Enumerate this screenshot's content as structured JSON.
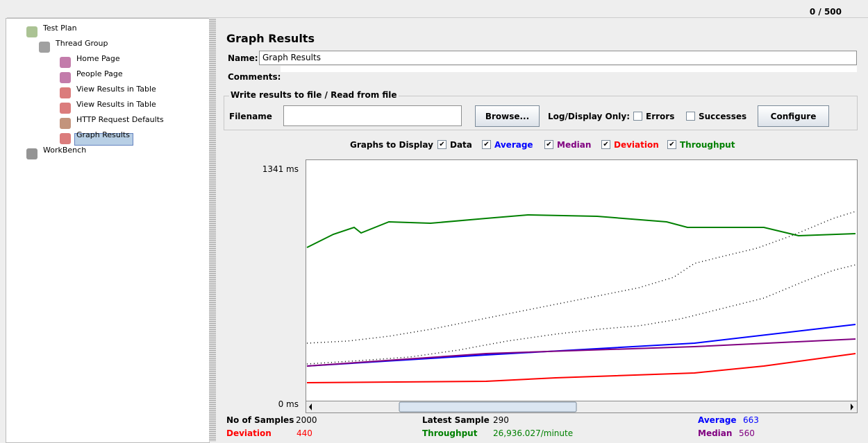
{
  "toolbar": {
    "counter": "0 / 500"
  },
  "tree": {
    "items": [
      "Test Plan",
      "Thread Group",
      "Home Page",
      "People Page",
      "View Results in Table",
      "View Results in Table",
      "HTTP Request Defaults",
      "Graph Results",
      "WorkBench"
    ]
  },
  "panel": {
    "title": "Graph Results",
    "name_label": "Name:",
    "name_value": "Graph Results",
    "comments_label": "Comments:",
    "file_group": {
      "legend": "Write results to file / Read from file",
      "filename_label": "Filename",
      "browse": "Browse...",
      "log_label": "Log/Display Only:",
      "errors": "Errors",
      "successes": "Successes",
      "configure": "Configure"
    },
    "graphs": {
      "label": "Graphs to Display",
      "options": [
        "Data",
        "Average",
        "Median",
        "Deviation",
        "Throughput"
      ]
    },
    "axis": {
      "top": "1341 ms",
      "bottom": "0 ms"
    },
    "stats": {
      "samples_label": "No of Samples",
      "samples": 2000,
      "latest_label": "Latest Sample",
      "latest": 290,
      "average_label": "Average",
      "average": 663,
      "deviation_label": "Deviation",
      "deviation": 440,
      "throughput_label": "Throughput",
      "throughput": "26,936.027/minute",
      "median_label": "Median",
      "median": 560
    }
  }
}
